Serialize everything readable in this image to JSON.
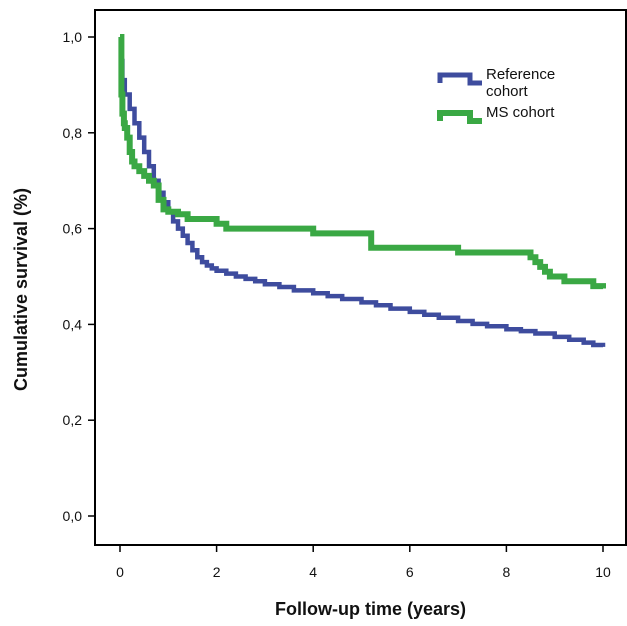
{
  "chart_data": {
    "type": "line",
    "step": true,
    "title": "",
    "xlabel": "Follow-up time (years)",
    "ylabel": "Cumulative survival (%)",
    "xlim": [
      0,
      10
    ],
    "ylim": [
      0,
      1.0
    ],
    "x_ticks": [
      {
        "value": 0,
        "label": "0"
      },
      {
        "value": 2,
        "label": "2"
      },
      {
        "value": 4,
        "label": "4"
      },
      {
        "value": 6,
        "label": "6"
      },
      {
        "value": 8,
        "label": "8"
      },
      {
        "value": 10,
        "label": "10"
      }
    ],
    "y_ticks": [
      {
        "value": 0.0,
        "label": "0,0"
      },
      {
        "value": 0.2,
        "label": "0,2"
      },
      {
        "value": 0.4,
        "label": "0,4"
      },
      {
        "value": 0.6,
        "label": "0,6"
      },
      {
        "value": 0.8,
        "label": "0,8"
      },
      {
        "value": 1.0,
        "label": "1,0"
      }
    ],
    "grid": false,
    "legend": {
      "placement": "top-right",
      "entries": [
        {
          "label_lines": [
            "Reference",
            "cohort"
          ],
          "series": "reference"
        },
        {
          "label_lines": [
            "MS cohort"
          ],
          "series": "ms"
        }
      ]
    },
    "series": [
      {
        "id": "reference",
        "name": "Reference cohort",
        "color": "#3e4c9e",
        "x": [
          0,
          0.02,
          0.05,
          0.1,
          0.2,
          0.3,
          0.4,
          0.5,
          0.6,
          0.7,
          0.8,
          0.9,
          1.0,
          1.1,
          1.2,
          1.3,
          1.4,
          1.5,
          1.6,
          1.7,
          1.8,
          1.9,
          2.0,
          2.2,
          2.4,
          2.6,
          2.8,
          3.0,
          3.3,
          3.6,
          4.0,
          4.3,
          4.6,
          5.0,
          5.3,
          5.6,
          6.0,
          6.3,
          6.6,
          7.0,
          7.3,
          7.6,
          8.0,
          8.3,
          8.6,
          9.0,
          9.3,
          9.6,
          9.8,
          10.0
        ],
        "y": [
          1.0,
          0.95,
          0.91,
          0.88,
          0.85,
          0.82,
          0.79,
          0.76,
          0.73,
          0.7,
          0.675,
          0.655,
          0.635,
          0.615,
          0.6,
          0.585,
          0.57,
          0.555,
          0.54,
          0.53,
          0.523,
          0.517,
          0.512,
          0.506,
          0.5,
          0.495,
          0.49,
          0.484,
          0.478,
          0.471,
          0.465,
          0.459,
          0.453,
          0.446,
          0.44,
          0.433,
          0.426,
          0.42,
          0.414,
          0.407,
          0.401,
          0.396,
          0.39,
          0.386,
          0.381,
          0.374,
          0.368,
          0.362,
          0.357,
          0.353
        ]
      },
      {
        "id": "ms",
        "name": "MS cohort",
        "color": "#3aa844",
        "x": [
          0,
          0.03,
          0.05,
          0.08,
          0.1,
          0.15,
          0.2,
          0.25,
          0.3,
          0.4,
          0.5,
          0.6,
          0.7,
          0.8,
          0.9,
          1.0,
          1.2,
          1.4,
          2.0,
          2.2,
          3.0,
          3.5,
          4.0,
          5.0,
          5.2,
          6.0,
          7.0,
          7.5,
          8.0,
          8.5,
          8.6,
          8.7,
          8.8,
          8.9,
          9.0,
          9.2,
          9.5,
          9.8,
          10.0
        ],
        "y": [
          1.0,
          0.88,
          0.84,
          0.82,
          0.81,
          0.79,
          0.76,
          0.74,
          0.73,
          0.72,
          0.71,
          0.7,
          0.69,
          0.66,
          0.64,
          0.635,
          0.63,
          0.62,
          0.61,
          0.6,
          0.6,
          0.6,
          0.59,
          0.59,
          0.56,
          0.56,
          0.55,
          0.55,
          0.55,
          0.54,
          0.53,
          0.52,
          0.51,
          0.5,
          0.5,
          0.49,
          0.49,
          0.48,
          0.475
        ]
      }
    ]
  }
}
